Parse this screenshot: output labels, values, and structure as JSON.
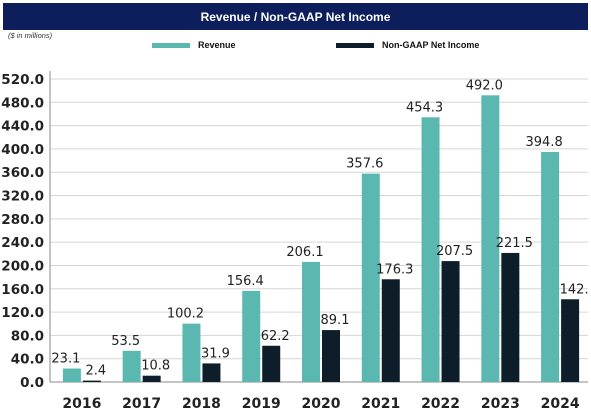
{
  "header": {
    "title": "Revenue / Non-GAAP Net Income"
  },
  "units_note": "($ in millions)",
  "legend": {
    "revenue_label": "Revenue",
    "net_income_label": "Non-GAAP Net Income"
  },
  "colors": {
    "title_bg": "#0c1e5c",
    "revenue": "#5ab8b0",
    "net_income": "#0e1d2a",
    "grid": "#d6d6d6"
  },
  "chart_data": {
    "type": "bar",
    "title": "Revenue / Non-GAAP Net Income",
    "xlabel": "",
    "ylabel": "",
    "categories": [
      "2016",
      "2017",
      "2018",
      "2019",
      "2020",
      "2021",
      "2022",
      "2023",
      "2024"
    ],
    "series": [
      {
        "name": "Revenue",
        "values": [
          23.1,
          53.5,
          100.2,
          156.4,
          206.1,
          357.6,
          454.3,
          492.0,
          394.8
        ],
        "labels": [
          "23.1",
          "53.5",
          "100.2",
          "156.4",
          "206.1",
          "357.6",
          "454.3",
          "492.0",
          "394.8"
        ]
      },
      {
        "name": "Non-GAAP Net Income",
        "values": [
          2.4,
          10.8,
          31.9,
          62.2,
          89.1,
          176.3,
          207.5,
          221.5,
          142.0
        ],
        "labels": [
          "2.4",
          "10.8",
          "31.9",
          "62.2",
          "89.1",
          "176.3",
          "207.5",
          "221.5",
          "142."
        ]
      }
    ],
    "ylim": [
      0,
      520
    ],
    "yticks": [
      "0.0",
      "40.0",
      "80.0",
      "120.0",
      "160.0",
      "200.0",
      "240.0",
      "280.0",
      "320.0",
      "360.0",
      "400.0",
      "440.0",
      "480.0",
      "520.0"
    ],
    "grid": true,
    "legend_position": "top"
  }
}
